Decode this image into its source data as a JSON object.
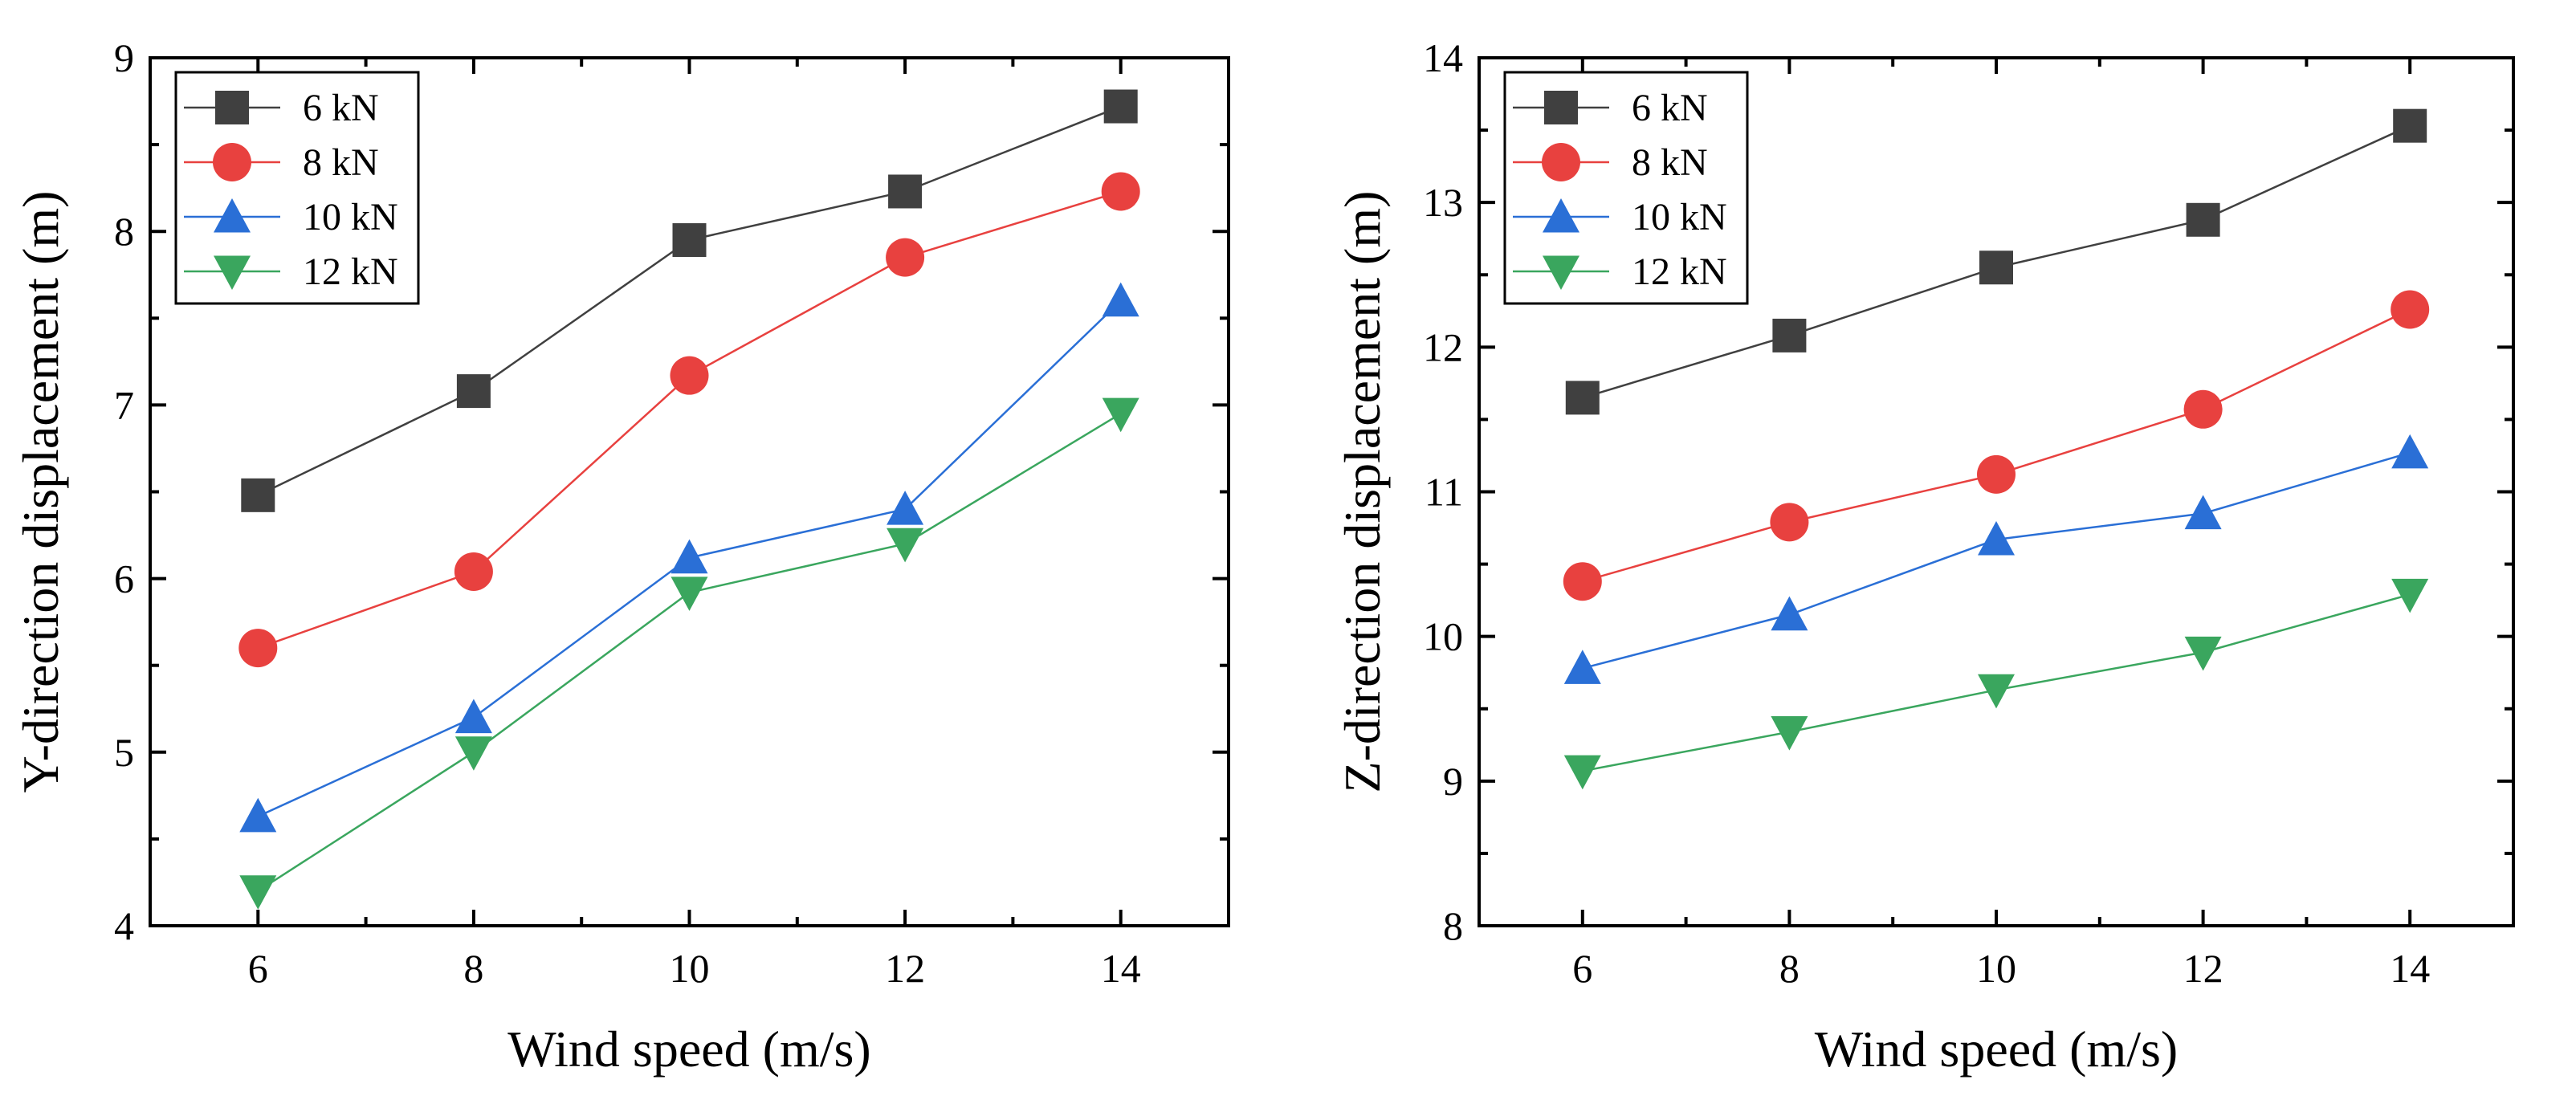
{
  "chart_data": [
    {
      "type": "line",
      "title": "",
      "xlabel": "Wind speed (m/s)",
      "ylabel": "Y-direction displacement (m)",
      "xlim": [
        5,
        15
      ],
      "ylim": [
        4,
        9
      ],
      "xticks": [
        "6",
        "8",
        "10",
        "12",
        "14"
      ],
      "yticks": [
        "4",
        "5",
        "6",
        "7",
        "8",
        "9"
      ],
      "grid": false,
      "legend_position": "top-left",
      "x": [
        6,
        8,
        10,
        12,
        14
      ],
      "series": [
        {
          "name": "6 kN",
          "color": "#404040",
          "marker": "square",
          "values": [
            6.48,
            7.08,
            7.95,
            8.23,
            8.72
          ]
        },
        {
          "name": "8 kN",
          "color": "#e8413f",
          "marker": "circle",
          "values": [
            5.6,
            6.04,
            7.17,
            7.85,
            8.23
          ]
        },
        {
          "name": "10 kN",
          "color": "#2a6fd6",
          "marker": "triangle-up",
          "values": [
            4.63,
            5.2,
            6.12,
            6.4,
            7.6
          ]
        },
        {
          "name": "12 kN",
          "color": "#3aa65e",
          "marker": "triangle-down",
          "values": [
            4.2,
            5.0,
            5.92,
            6.2,
            6.95
          ]
        }
      ]
    },
    {
      "type": "line",
      "title": "",
      "xlabel": "Wind speed (m/s)",
      "ylabel": "Z-direction displacement (m)",
      "xlim": [
        5,
        15
      ],
      "ylim": [
        8,
        14
      ],
      "xticks": [
        "6",
        "8",
        "10",
        "12",
        "14"
      ],
      "yticks": [
        "8",
        "9",
        "10",
        "11",
        "12",
        "13",
        "14"
      ],
      "grid": false,
      "legend_position": "top-left",
      "x": [
        6,
        8,
        10,
        12,
        14
      ],
      "series": [
        {
          "name": "6 kN",
          "color": "#404040",
          "marker": "square",
          "values": [
            11.65,
            12.08,
            12.55,
            12.88,
            13.53
          ]
        },
        {
          "name": "8 kN",
          "color": "#e8413f",
          "marker": "circle",
          "values": [
            10.38,
            10.79,
            11.12,
            11.57,
            12.26
          ]
        },
        {
          "name": "10 kN",
          "color": "#2a6fd6",
          "marker": "triangle-up",
          "values": [
            9.78,
            10.15,
            10.67,
            10.85,
            11.27
          ]
        },
        {
          "name": "12 kN",
          "color": "#3aa65e",
          "marker": "triangle-down",
          "values": [
            9.07,
            9.34,
            9.63,
            9.89,
            10.29
          ]
        }
      ]
    }
  ]
}
